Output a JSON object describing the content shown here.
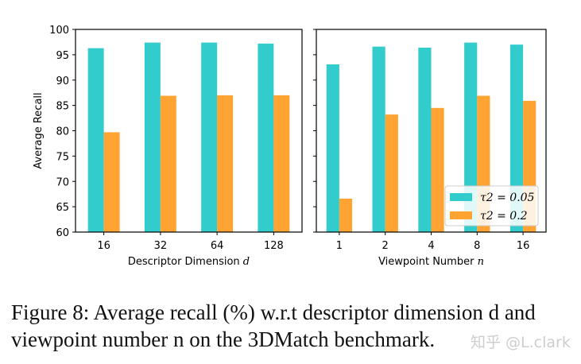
{
  "chart_data": [
    {
      "type": "bar",
      "categories": [
        "16",
        "32",
        "64",
        "128"
      ],
      "xlabel": "Descriptor Dimension d",
      "ylabel": "Average Recall",
      "ylim": [
        60,
        100
      ],
      "yticks": [
        "60",
        "65",
        "70",
        "75",
        "80",
        "85",
        "90",
        "95",
        "100"
      ],
      "series": [
        {
          "name": "τ2 = 0.05",
          "color": "#33CCCC",
          "values": [
            96.3,
            97.4,
            97.4,
            97.2
          ]
        },
        {
          "name": "τ2 = 0.2",
          "color": "#FFA333",
          "values": [
            79.7,
            86.9,
            87.0,
            87.0
          ]
        }
      ]
    },
    {
      "type": "bar",
      "categories": [
        "1",
        "2",
        "4",
        "8",
        "16"
      ],
      "xlabel": "Viewpoint Number n",
      "ylim": [
        60,
        100
      ],
      "legend": "bottom-right",
      "series": [
        {
          "name": "τ2 = 0.05",
          "color": "#33CCCC",
          "values": [
            93.1,
            96.6,
            96.4,
            97.4,
            97.0
          ]
        },
        {
          "name": "τ2 = 0.2",
          "color": "#FFA333",
          "values": [
            66.6,
            83.2,
            84.5,
            86.9,
            85.9
          ]
        }
      ]
    }
  ],
  "caption": "Figure 8: Average recall (%) w.r.t descriptor dimension d and viewpoint number n on the 3DMatch benchmark.",
  "watermark": "知乎 @L.clark"
}
